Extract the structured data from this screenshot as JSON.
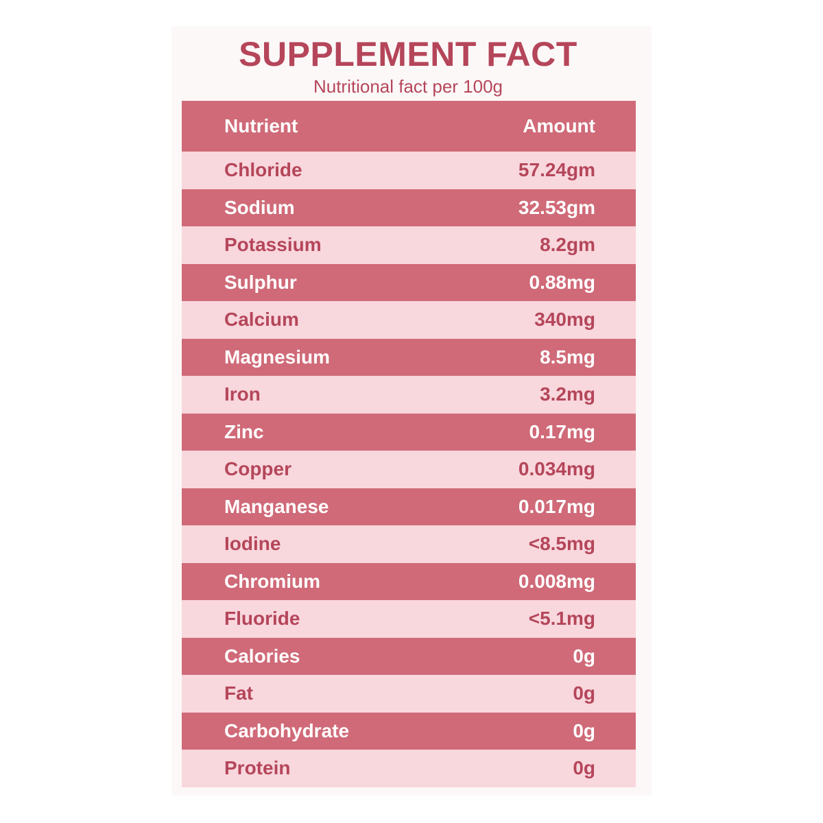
{
  "header": {
    "title": "SUPPLEMENT FACT",
    "subtitle": "Nutritional fact per 100g"
  },
  "table": {
    "columns": [
      "Nutrient",
      "Amount"
    ],
    "rows": [
      [
        "Chloride",
        "57.24gm"
      ],
      [
        "Sodium",
        "32.53gm"
      ],
      [
        "Potassium",
        "8.2gm"
      ],
      [
        "Sulphur",
        "0.88mg"
      ],
      [
        "Calcium",
        "340mg"
      ],
      [
        "Magnesium",
        "8.5mg"
      ],
      [
        "Iron",
        "3.2mg"
      ],
      [
        "Zinc",
        "0.17mg"
      ],
      [
        "Copper",
        "0.034mg"
      ],
      [
        "Manganese",
        "0.017mg"
      ],
      [
        "Iodine",
        "<8.5mg"
      ],
      [
        "Chromium",
        "0.008mg"
      ],
      [
        "Fluoride",
        "<5.1mg"
      ],
      [
        "Calories",
        "0g"
      ],
      [
        "Fat",
        "0g"
      ],
      [
        "Carbohydrate",
        "0g"
      ],
      [
        "Protein",
        "0g"
      ]
    ]
  }
}
